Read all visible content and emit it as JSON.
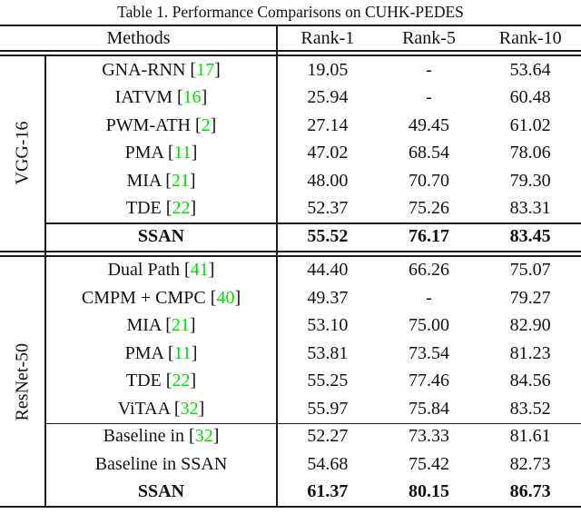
{
  "caption": "Table 1. Performance Comparisons on CUHK-PEDES",
  "colors": {
    "citation_green": "#00E000",
    "rule": "#1c1c1c",
    "text": "#111111"
  },
  "header": {
    "methods": "Methods",
    "ranks": [
      "Rank-1",
      "Rank-5",
      "Rank-10"
    ]
  },
  "chart_data": {
    "type": "table",
    "title": "Table 1. Performance Comparisons on CUHK-PEDES",
    "columns": [
      "Methods",
      "Rank-1",
      "Rank-5",
      "Rank-10"
    ],
    "groups": [
      {
        "label": "VGG-16",
        "row_height": 30.5,
        "rows": [
          {
            "method": "GNA-RNN",
            "cite": "17",
            "values": [
              "19.05",
              "-",
              "53.64"
            ],
            "bold": false,
            "sep_above": false
          },
          {
            "method": "IATVM",
            "cite": "16",
            "values": [
              "25.94",
              "-",
              "60.48"
            ],
            "bold": false,
            "sep_above": false
          },
          {
            "method": "PWM-ATH",
            "cite": "2",
            "values": [
              "27.14",
              "49.45",
              "61.02"
            ],
            "bold": false,
            "sep_above": false
          },
          {
            "method": "PMA",
            "cite": "11",
            "values": [
              "47.02",
              "68.54",
              "78.06"
            ],
            "bold": false,
            "sep_above": false
          },
          {
            "method": "MIA",
            "cite": "21",
            "values": [
              "48.00",
              "70.70",
              "79.30"
            ],
            "bold": false,
            "sep_above": false
          },
          {
            "method": "TDE",
            "cite": "22",
            "values": [
              "52.37",
              "75.26",
              "83.31"
            ],
            "bold": false,
            "sep_above": false
          },
          {
            "method": "SSAN",
            "cite": null,
            "values": [
              "55.52",
              "76.17",
              "83.45"
            ],
            "bold": true,
            "sep_above": true
          }
        ]
      },
      {
        "label": "ResNet-50",
        "row_height": 30.5,
        "rows": [
          {
            "method": "Dual Path",
            "cite": "41",
            "values": [
              "44.40",
              "66.26",
              "75.07"
            ],
            "bold": false,
            "sep_above": false
          },
          {
            "method": "CMPM + CMPC",
            "cite": "40",
            "values": [
              "49.37",
              "-",
              "79.27"
            ],
            "bold": false,
            "sep_above": false
          },
          {
            "method": "MIA",
            "cite": "21",
            "values": [
              "53.10",
              "75.00",
              "82.90"
            ],
            "bold": false,
            "sep_above": false
          },
          {
            "method": "PMA",
            "cite": "11",
            "values": [
              "53.81",
              "73.54",
              "81.23"
            ],
            "bold": false,
            "sep_above": false
          },
          {
            "method": "TDE",
            "cite": "22",
            "values": [
              "55.25",
              "77.46",
              "84.56"
            ],
            "bold": false,
            "sep_above": false
          },
          {
            "method": "ViTAA",
            "cite": "32",
            "values": [
              "55.97",
              "75.84",
              "83.52"
            ],
            "bold": false,
            "sep_above": false
          },
          {
            "method": "Baseline in",
            "cite": "32",
            "values": [
              "52.27",
              "73.33",
              "81.61"
            ],
            "bold": false,
            "sep_above": true
          },
          {
            "method": "Baseline in SSAN",
            "cite": null,
            "values": [
              "54.68",
              "75.42",
              "82.73"
            ],
            "bold": false,
            "sep_above": false
          },
          {
            "method": "SSAN",
            "cite": null,
            "values": [
              "61.37",
              "80.15",
              "86.73"
            ],
            "bold": true,
            "sep_above": false
          }
        ]
      }
    ]
  }
}
